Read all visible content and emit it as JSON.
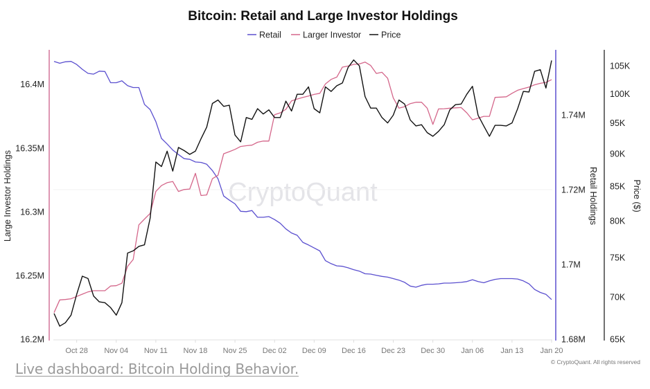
{
  "chart_data": {
    "type": "line",
    "title": "Bitcoin: Retail and Large Investor Holdings",
    "legend_position": "top-center",
    "watermark": "CryptoQuant",
    "copyright": "© CryptoQuant. All rights reserved",
    "grid": false,
    "x": [
      "Oct 24",
      "Oct 25",
      "Oct 26",
      "Oct 27",
      "Oct 28",
      "Oct 29",
      "Oct 30",
      "Oct 31",
      "Nov 01",
      "Nov 02",
      "Nov 03",
      "Nov 04",
      "Nov 05",
      "Nov 06",
      "Nov 07",
      "Nov 08",
      "Nov 09",
      "Nov 10",
      "Nov 11",
      "Nov 12",
      "Nov 13",
      "Nov 14",
      "Nov 15",
      "Nov 16",
      "Nov 17",
      "Nov 18",
      "Nov 19",
      "Nov 20",
      "Nov 21",
      "Nov 22",
      "Nov 23",
      "Nov 24",
      "Nov 25",
      "Nov 26",
      "Nov 27",
      "Nov 28",
      "Nov 29",
      "Nov 30",
      "Dec 01",
      "Dec 02",
      "Dec 03",
      "Dec 04",
      "Dec 05",
      "Dec 06",
      "Dec 07",
      "Dec 08",
      "Dec 09",
      "Dec 10",
      "Dec 11",
      "Dec 12",
      "Dec 13",
      "Dec 14",
      "Dec 15",
      "Dec 16",
      "Dec 17",
      "Dec 18",
      "Dec 19",
      "Dec 20",
      "Dec 21",
      "Dec 22",
      "Dec 23",
      "Dec 24",
      "Dec 25",
      "Dec 26",
      "Dec 27",
      "Dec 28",
      "Dec 29",
      "Dec 30",
      "Dec 31",
      "Jan 01",
      "Jan 02",
      "Jan 03",
      "Jan 04",
      "Jan 05",
      "Jan 06",
      "Jan 07",
      "Jan 08",
      "Jan 09",
      "Jan 10",
      "Jan 11",
      "Jan 12",
      "Jan 13",
      "Jan 14",
      "Jan 15",
      "Jan 16",
      "Jan 17",
      "Jan 18",
      "Jan 19",
      "Jan 20"
    ],
    "x_ticks": [
      "Oct 28",
      "Nov 04",
      "Nov 11",
      "Nov 18",
      "Nov 25",
      "Dec 02",
      "Dec 09",
      "Dec 16",
      "Dec 23",
      "Dec 30",
      "Jan 06",
      "Jan 13",
      "Jan 20"
    ],
    "axes": {
      "left": {
        "label": "Large Investor Holdings",
        "ylim": [
          16.2,
          16.427
        ],
        "ticks": [
          16.2,
          16.25,
          16.3,
          16.35,
          16.4
        ],
        "tick_labels": [
          "16.2M",
          "16.25M",
          "16.3M",
          "16.35M",
          "16.4M"
        ],
        "color": "#c9517f"
      },
      "retail": {
        "label": "Retail Holdings",
        "ylim": [
          1.68,
          1.7574
        ],
        "ticks": [
          1.68,
          1.7,
          1.72,
          1.74
        ],
        "tick_labels": [
          "1.68M",
          "1.7M",
          "1.72M",
          "1.74M"
        ],
        "color": "#5a4fcf"
      },
      "price": {
        "label": "Price ($)",
        "scale": "log",
        "ylim": [
          65,
          108
        ],
        "ticks": [
          65,
          70,
          75,
          80,
          85,
          90,
          95,
          100,
          105
        ],
        "tick_labels": [
          "65K",
          "70K",
          "75K",
          "80K",
          "85K",
          "90K",
          "95K",
          "100K",
          "105K"
        ],
        "color": "#111111"
      }
    },
    "series": [
      {
        "name": "Retail",
        "axis": "retail",
        "unit": "M",
        "color": "#5a4fcf",
        "values": [
          1.7543,
          1.7538,
          1.7542,
          1.7543,
          1.7535,
          1.7522,
          1.7511,
          1.7509,
          1.7517,
          1.7516,
          1.7486,
          1.7486,
          1.7491,
          1.7478,
          1.7473,
          1.7473,
          1.7428,
          1.7414,
          1.7382,
          1.7337,
          1.7322,
          1.7306,
          1.7294,
          1.7283,
          1.7281,
          1.7274,
          1.7273,
          1.7268,
          1.7251,
          1.7229,
          1.7183,
          1.7172,
          1.7162,
          1.7142,
          1.7141,
          1.7144,
          1.7126,
          1.7126,
          1.7128,
          1.712,
          1.711,
          1.7095,
          1.7084,
          1.7078,
          1.7059,
          1.7052,
          1.7044,
          1.7036,
          1.701,
          1.7002,
          1.6996,
          1.6995,
          1.6991,
          1.6986,
          1.6982,
          1.6975,
          1.6974,
          1.6971,
          1.6968,
          1.6966,
          1.6962,
          1.6958,
          1.6952,
          1.6942,
          1.6939,
          1.6944,
          1.6947,
          1.6947,
          1.6948,
          1.695,
          1.695,
          1.6951,
          1.6952,
          1.6954,
          1.6959,
          1.6954,
          1.6951,
          1.6956,
          1.696,
          1.6962,
          1.6962,
          1.6962,
          1.6961,
          1.6956,
          1.6948,
          1.6933,
          1.6925,
          1.692,
          1.6906
        ]
      },
      {
        "name": "Larger Investor",
        "axis": "left",
        "unit": "M",
        "color": "#d4668a",
        "values": [
          16.2208,
          16.2308,
          16.2311,
          16.2317,
          16.2335,
          16.2353,
          16.2371,
          16.238,
          16.238,
          16.238,
          16.2417,
          16.242,
          16.2439,
          16.2571,
          16.2625,
          16.2897,
          16.2942,
          16.2987,
          16.3159,
          16.3205,
          16.3228,
          16.3237,
          16.3159,
          16.3174,
          16.3178,
          16.3301,
          16.3127,
          16.3132,
          16.3259,
          16.3286,
          16.3455,
          16.3471,
          16.3489,
          16.3512,
          16.3518,
          16.3522,
          16.3545,
          16.3554,
          16.3554,
          16.3761,
          16.3776,
          16.3803,
          16.387,
          16.3884,
          16.3897,
          16.3908,
          16.392,
          16.3929,
          16.4002,
          16.4038,
          16.4056,
          16.4134,
          16.4143,
          16.4156,
          16.4159,
          16.4174,
          16.4147,
          16.4085,
          16.4094,
          16.4047,
          16.3893,
          16.3813,
          16.3824,
          16.3848,
          16.3859,
          16.3859,
          16.3812,
          16.3685,
          16.3806,
          16.3808,
          16.3812,
          16.3815,
          16.3817,
          16.3776,
          16.3721,
          16.3734,
          16.3748,
          16.3748,
          16.3897,
          16.3899,
          16.3902,
          16.3929,
          16.3953,
          16.3966,
          16.3978,
          16.3996,
          16.4007,
          16.4015,
          16.4036
        ]
      },
      {
        "name": "Price",
        "axis": "price",
        "unit": "K",
        "color": "#111111",
        "values": [
          68.0,
          66.5,
          66.9,
          67.8,
          70.3,
          72.6,
          72.3,
          70.1,
          69.4,
          69.3,
          68.7,
          67.8,
          69.3,
          75.6,
          75.9,
          76.5,
          76.7,
          80.4,
          88.7,
          88.0,
          90.4,
          87.3,
          91.0,
          90.5,
          89.9,
          90.4,
          92.4,
          94.3,
          98.3,
          98.9,
          97.8,
          98.0,
          93.0,
          91.9,
          95.9,
          95.6,
          97.4,
          96.5,
          97.2,
          95.9,
          95.9,
          98.7,
          97.0,
          99.9,
          99.9,
          101.2,
          97.4,
          96.7,
          101.2,
          100.4,
          101.4,
          101.9,
          104.7,
          106.1,
          105.0,
          99.5,
          97.5,
          97.5,
          95.9,
          95.0,
          96.3,
          98.9,
          98.2,
          95.5,
          94.5,
          94.7,
          93.4,
          92.8,
          93.6,
          94.7,
          97.2,
          98.1,
          98.2,
          99.9,
          101.3,
          96.3,
          94.5,
          92.8,
          94.6,
          94.6,
          94.5,
          95.0,
          97.4,
          100.4,
          100.3,
          104.0,
          104.3,
          101.0,
          106.0
        ]
      }
    ]
  },
  "footer": {
    "link_text": "Live dashboard: Bitcoin Holding Behavior."
  }
}
